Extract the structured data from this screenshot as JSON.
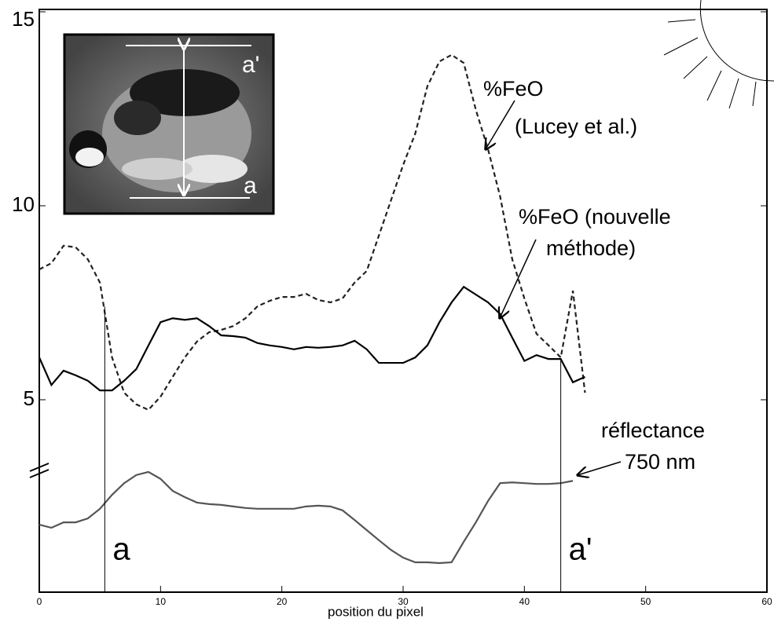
{
  "chart_data": {
    "type": "line",
    "x": [
      0,
      1,
      2,
      3,
      4,
      5,
      6,
      7,
      8,
      9,
      10,
      11,
      12,
      13,
      14,
      15,
      16,
      17,
      18,
      19,
      20,
      21,
      22,
      23,
      24,
      25,
      26,
      27,
      28,
      29,
      30,
      31,
      32,
      33,
      34,
      35,
      36,
      37,
      38,
      39,
      40,
      41,
      42,
      43,
      44,
      45
    ],
    "xlabel": "position du pixel",
    "xlim": [
      0,
      60
    ],
    "xticks": [
      0,
      10,
      20,
      30,
      40,
      50,
      60
    ],
    "ylim": [
      0,
      15
    ],
    "yticks": [
      5,
      10,
      15
    ],
    "series": [
      {
        "label": [
          "%FeO",
          "(Lucey et al.)"
        ],
        "color": "#222222",
        "dash": true,
        "values": [
          8.36,
          8.52,
          8.97,
          8.93,
          8.62,
          8.02,
          6.09,
          5.18,
          4.88,
          4.74,
          5.08,
          5.59,
          6.09,
          6.5,
          6.74,
          6.8,
          6.9,
          7.1,
          7.41,
          7.55,
          7.65,
          7.65,
          7.73,
          7.57,
          7.51,
          7.61,
          8.02,
          8.32,
          9.23,
          10.14,
          11.05,
          11.86,
          13.08,
          13.72,
          13.89,
          13.68,
          12.47,
          11.46,
          10.24,
          8.62,
          7.61,
          6.7,
          6.4,
          6.09,
          7.81,
          5.18
        ]
      },
      {
        "label": [
          "%FeO (nouvelle",
          "méthode)"
        ],
        "color": "#000000",
        "dash": false,
        "values": [
          6.09,
          5.38,
          5.75,
          5.63,
          5.49,
          5.24,
          5.24,
          5.49,
          5.79,
          6.4,
          7.0,
          7.1,
          7.06,
          7.1,
          6.9,
          6.66,
          6.64,
          6.6,
          6.46,
          6.4,
          6.36,
          6.3,
          6.36,
          6.34,
          6.36,
          6.4,
          6.52,
          6.3,
          5.95,
          5.95,
          5.95,
          6.09,
          6.4,
          7.0,
          7.51,
          7.91,
          7.71,
          7.51,
          7.21,
          6.6,
          6.0,
          6.15,
          6.05,
          6.05,
          5.45,
          5.59
        ]
      },
      {
        "label": [
          "réflectance",
          "750 nm"
        ],
        "color": "#555555",
        "dash": false,
        "values": [
          1.78,
          1.7,
          1.84,
          1.84,
          1.94,
          2.19,
          2.55,
          2.85,
          3.06,
          3.14,
          2.96,
          2.65,
          2.49,
          2.35,
          2.31,
          2.29,
          2.25,
          2.21,
          2.19,
          2.19,
          2.19,
          2.19,
          2.25,
          2.27,
          2.25,
          2.15,
          1.9,
          1.64,
          1.38,
          1.13,
          0.93,
          0.81,
          0.81,
          0.79,
          0.81,
          1.34,
          1.84,
          2.39,
          2.85,
          2.87,
          2.85,
          2.83,
          2.83,
          2.85,
          2.91,
          null
        ]
      }
    ],
    "markers": [
      {
        "x": 5.4,
        "top": 7.4,
        "label": "a"
      },
      {
        "x": 43,
        "top": 6.05,
        "label": "a'"
      }
    ],
    "inset_labels": [
      "a'",
      "a"
    ]
  }
}
